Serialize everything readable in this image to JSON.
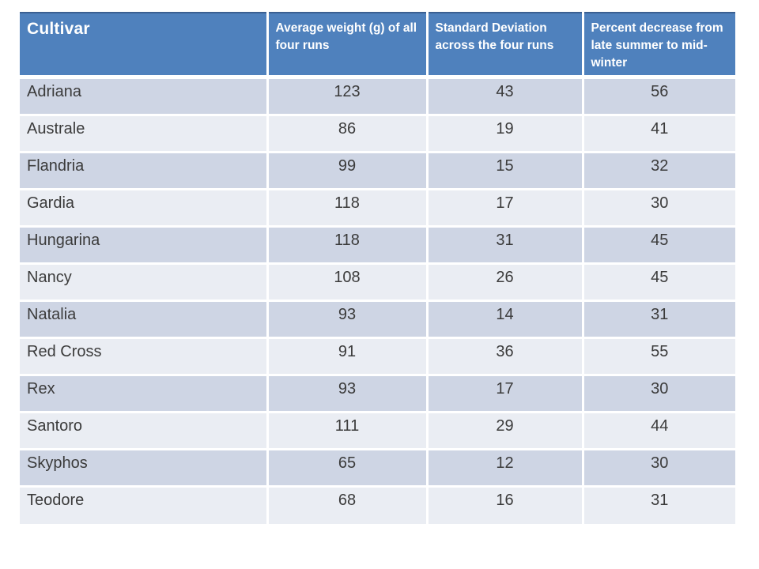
{
  "chart_data": {
    "type": "table",
    "columns": [
      "Cultivar",
      "Average weight (g) of all four runs",
      "Standard Deviation across the four runs",
      "Percent decrease from late summer to mid-winter"
    ],
    "rows": [
      [
        "Adriana",
        "123",
        "43",
        "56"
      ],
      [
        "Australe",
        "86",
        "19",
        "41"
      ],
      [
        "Flandria",
        "99",
        "15",
        "32"
      ],
      [
        "Gardia",
        "118",
        "17",
        "30"
      ],
      [
        "Hungarina",
        "118",
        "31",
        "45"
      ],
      [
        "Nancy",
        "108",
        "26",
        "45"
      ],
      [
        "Natalia",
        "93",
        "14",
        "31"
      ],
      [
        "Red Cross",
        "91",
        "36",
        "55"
      ],
      [
        "Rex",
        "93",
        "17",
        "30"
      ],
      [
        "Santoro",
        "111",
        "29",
        "44"
      ],
      [
        "Skyphos",
        "65",
        "12",
        "30"
      ],
      [
        "Teodore",
        "68",
        "16",
        "31"
      ]
    ],
    "layout_hints": {
      "header_align": "left",
      "name_column_align": "left",
      "number_columns_align": "center",
      "banded_rows": true,
      "grid": "white separators"
    }
  },
  "colors": {
    "header_bg": "#4f81bd",
    "header_top_border": "#3a5f91",
    "header_text": "#ffffff",
    "band_dark": "#ced5e4",
    "band_light": "#eaedf3",
    "body_text": "#3b3b3b",
    "slide_bg": "#ffffff"
  }
}
